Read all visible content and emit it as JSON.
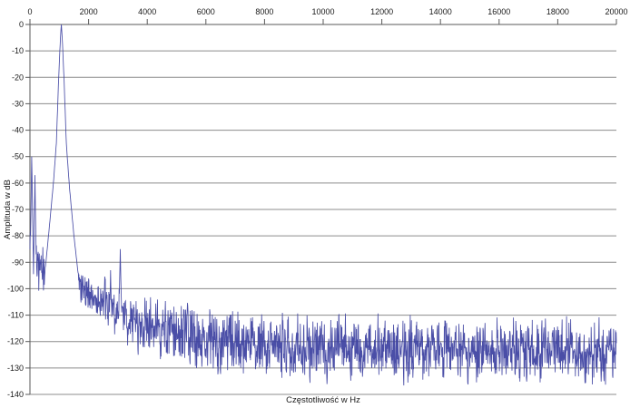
{
  "chart_data": {
    "type": "line",
    "title": "",
    "xlabel": "Częstotliwość w Hz",
    "ylabel": "Amplituda w dB",
    "xlim": [
      0,
      20000
    ],
    "ylim": [
      -140,
      0
    ],
    "x_ticks": [
      0,
      2000,
      4000,
      6000,
      8000,
      10000,
      12000,
      14000,
      16000,
      18000,
      20000
    ],
    "y_ticks": [
      0,
      -10,
      -20,
      -30,
      -40,
      -50,
      -60,
      -70,
      -80,
      -90,
      -100,
      -110,
      -120,
      -130,
      -140
    ],
    "grid": true,
    "legend": false,
    "line_color": "#3b3f9f",
    "grid_color": "#8c8c8c",
    "axis_color": "#5a5a5a",
    "text_color": "#1a1a1a",
    "main_peak": {
      "freq_hz": 1070,
      "amplitude_db": 0
    },
    "peak_profile": [
      [
        500,
        -95
      ],
      [
        650,
        -78
      ],
      [
        800,
        -60
      ],
      [
        900,
        -45
      ],
      [
        980,
        -20
      ],
      [
        1040,
        -5
      ],
      [
        1070,
        0
      ],
      [
        1100,
        -5
      ],
      [
        1160,
        -20
      ],
      [
        1240,
        -45
      ],
      [
        1350,
        -62
      ],
      [
        1500,
        -80
      ],
      [
        1650,
        -95
      ]
    ],
    "spikes": [
      {
        "freq_hz": 60,
        "db": -50,
        "width_hz": 60
      },
      {
        "freq_hz": 170,
        "db": -57,
        "width_hz": 60
      },
      {
        "freq_hz": 2750,
        "db": -93,
        "width_hz": 80
      },
      {
        "freq_hz": 3080,
        "db": -85,
        "width_hz": 80
      }
    ],
    "noise_floor": {
      "seed": 42,
      "step_hz": 10,
      "clip_db": -140,
      "mean_db": [
        [
          0,
          -86
        ],
        [
          250,
          -90
        ],
        [
          500,
          -96
        ],
        [
          1700,
          -98
        ],
        [
          2200,
          -104
        ],
        [
          3000,
          -109
        ],
        [
          3600,
          -113
        ],
        [
          4500,
          -116
        ],
        [
          6000,
          -119
        ],
        [
          9000,
          -122
        ],
        [
          13000,
          -123
        ],
        [
          20000,
          -124
        ]
      ],
      "spread_db": [
        [
          0,
          10
        ],
        [
          500,
          7
        ],
        [
          1700,
          5
        ],
        [
          2500,
          7
        ],
        [
          3500,
          8
        ],
        [
          4500,
          9
        ],
        [
          6000,
          9.5
        ],
        [
          20000,
          9.5
        ]
      ]
    }
  }
}
